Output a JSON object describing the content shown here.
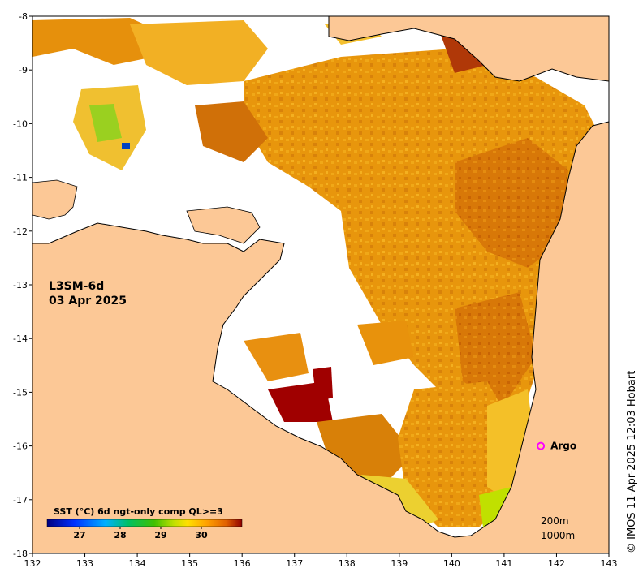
{
  "map": {
    "product": "L3SM-6d",
    "date": "03 Apr 2025",
    "lon_range": [
      132,
      143
    ],
    "lat_range": [
      -18,
      -8
    ],
    "lon_ticks": [
      "132",
      "133",
      "134",
      "135",
      "136",
      "137",
      "138",
      "139",
      "140",
      "141",
      "142",
      "143"
    ],
    "lat_ticks": [
      "-8",
      "-9",
      "-10",
      "-11",
      "-12",
      "-13",
      "-14",
      "-15",
      "-16",
      "-17",
      "-18"
    ],
    "copyright": "© IMOS 11-Apr-2025 12:03 Hobart",
    "argo": {
      "label": "Argo",
      "lon": 141.7,
      "lat": -16.0,
      "color": "#ff00ff"
    },
    "depth_contours": [
      "200m",
      "1000m"
    ],
    "colors": {
      "land": "#fcc896",
      "nodata": "#ffffff",
      "coast": "#000000"
    }
  },
  "colorbar": {
    "title": "SST (°C) 6d ngt-only comp QL>=3",
    "min": 26.2,
    "max": 31.0,
    "ticks": [
      "27",
      "28",
      "29",
      "30"
    ],
    "tick_values": [
      27,
      28,
      29,
      30
    ]
  }
}
